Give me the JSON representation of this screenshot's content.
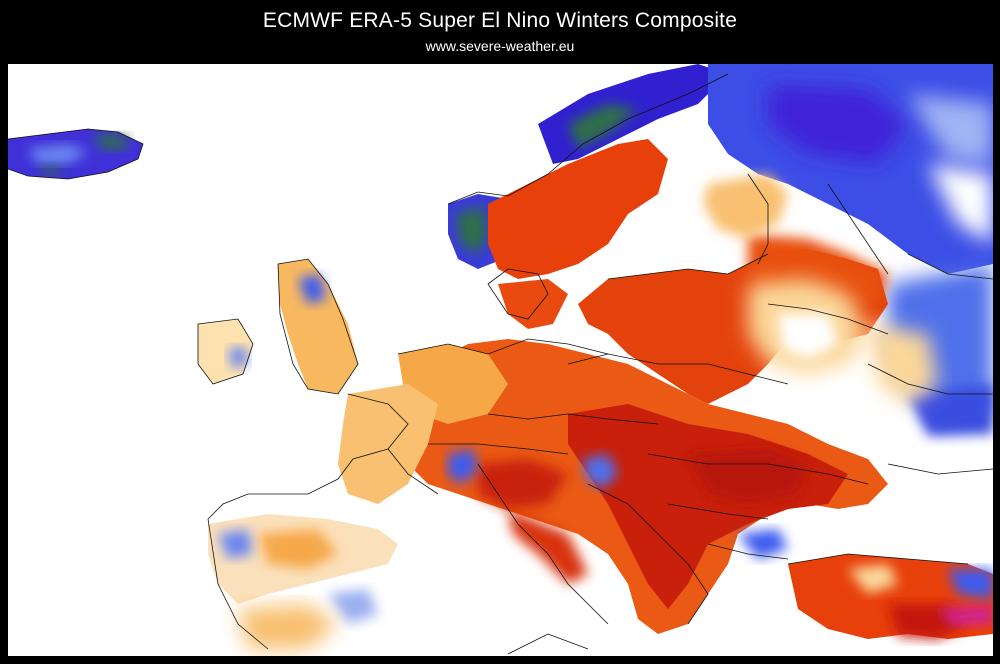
{
  "header": {
    "title": "ECMWF ERA-5 Super El Nino Winters Composite",
    "subtitle": "www.severe-weather.eu"
  },
  "map": {
    "region": "Europe",
    "colors": {
      "strong_warm": "#c81400",
      "warm": "#e8400a",
      "mild_warm": "#f4a040",
      "slight_warm": "#fbd79a",
      "neutral": "#ffffff",
      "slight_cold": "#b8c8f4",
      "cold": "#3c5cf0",
      "strong_cold": "#3010d0",
      "extreme_cold": "#2e6e48"
    }
  }
}
